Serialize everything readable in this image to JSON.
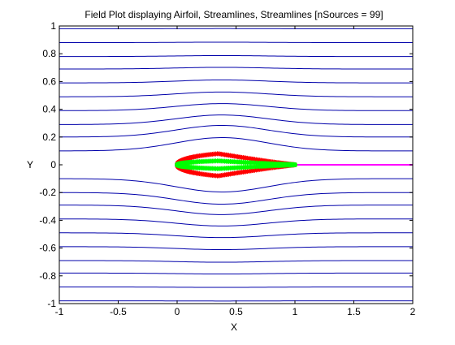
{
  "chart_data": {
    "type": "line",
    "title": "Field Plot displaying Airfoil, Streamlines, Streamlines [nSources = 99]",
    "xlabel": "X",
    "ylabel": "Y",
    "xlim": [
      -1,
      2
    ],
    "ylim": [
      -1,
      1
    ],
    "xticks": [
      -1,
      -0.5,
      0,
      0.5,
      1,
      1.5,
      2
    ],
    "xtick_labels": [
      "-1",
      "-0.5",
      "0",
      "0.5",
      "1",
      "1.5",
      "2"
    ],
    "yticks": [
      -1,
      -0.8,
      -0.6,
      -0.4,
      -0.2,
      0,
      0.2,
      0.4,
      0.6,
      0.8,
      1
    ],
    "ytick_labels": [
      "-1",
      "-0.8",
      "-0.6",
      "-0.4",
      "-0.2",
      "0",
      "0.2",
      "0.4",
      "0.6",
      "0.8",
      "1"
    ],
    "grid": false,
    "colors": {
      "streamlines": "#0000aa",
      "airfoil_sources": "#ff0000",
      "airfoil_surface": "#00ff00",
      "wake": "#ff00ff",
      "axes": "#000000"
    },
    "streamlines": {
      "y_start": [
        -0.98,
        -0.88,
        -0.78,
        -0.69,
        -0.59,
        -0.49,
        -0.39,
        -0.29,
        -0.2,
        -0.1,
        0.1,
        0.2,
        0.29,
        0.39,
        0.49,
        0.59,
        0.69,
        0.78,
        0.88,
        0.98
      ],
      "bulge_max": 0.1,
      "bulge_center_x": 0.38,
      "x_range": [
        -1,
        2
      ]
    },
    "airfoil": {
      "chord": [
        0,
        1
      ],
      "max_thickness_x": 0.35,
      "max_half_thickness": 0.08,
      "source_count": 99
    },
    "wake": {
      "x_range": [
        1,
        2
      ],
      "y": [
        0.003,
        -0.003
      ]
    }
  }
}
